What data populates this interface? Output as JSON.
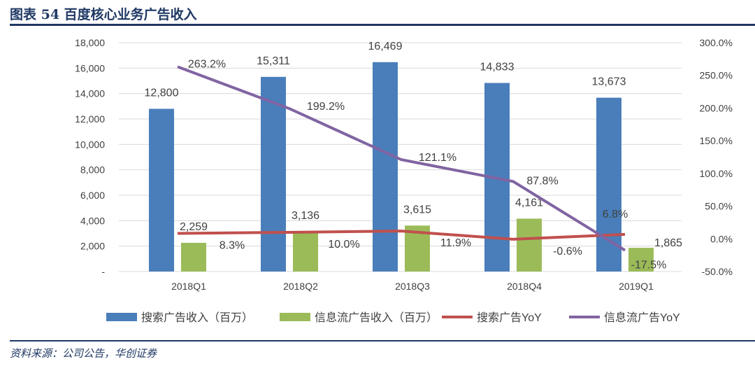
{
  "title": "图表 54 百度核心业务广告收入",
  "source": "资料来源：公司公告，华创证券",
  "chart_data": {
    "type": "bar",
    "categories": [
      "2018Q1",
      "2018Q2",
      "2018Q3",
      "2018Q4",
      "2019Q1"
    ],
    "series": [
      {
        "name": "搜索广告收入（百万）",
        "kind": "bar",
        "axis": "left",
        "color": "#4a7ebb",
        "values": [
          12800,
          15311,
          16469,
          14833,
          13673
        ],
        "labels": [
          "12,800",
          "15,311",
          "16,469",
          "14,833",
          "13,673"
        ]
      },
      {
        "name": "信息流广告收入（百万）",
        "kind": "bar",
        "axis": "left",
        "color": "#9bbb59",
        "values": [
          2259,
          3136,
          3615,
          4161,
          1865
        ],
        "labels": [
          "2,259",
          "3,136",
          "3,615",
          "4,161",
          "1,865"
        ]
      },
      {
        "name": "搜索广告YoY",
        "kind": "line",
        "axis": "right",
        "color": "#c0504d",
        "values": [
          8.3,
          10.0,
          11.9,
          -0.6,
          6.8
        ],
        "labels": [
          "8.3%",
          "10.0%",
          "11.9%",
          "-0.6%",
          "6.8%"
        ]
      },
      {
        "name": "信息流广告YoY",
        "kind": "line",
        "axis": "right",
        "color": "#8064a2",
        "values": [
          263.2,
          199.2,
          121.1,
          87.8,
          -17.5
        ],
        "labels": [
          "263.2%",
          "199.2%",
          "121.1%",
          "87.8%",
          "-17.5%"
        ]
      }
    ],
    "left_axis": {
      "ylim": [
        0,
        18000
      ],
      "ticks": [
        "-",
        "2,000",
        "4,000",
        "6,000",
        "8,000",
        "10,000",
        "12,000",
        "14,000",
        "16,000",
        "18,000"
      ]
    },
    "right_axis": {
      "ylim": [
        -50,
        300
      ],
      "ticks": [
        "-50.0%",
        "0.0%",
        "50.0%",
        "100.0%",
        "150.0%",
        "200.0%",
        "250.0%",
        "300.0%"
      ]
    },
    "legend": "bottom",
    "grid": true
  }
}
